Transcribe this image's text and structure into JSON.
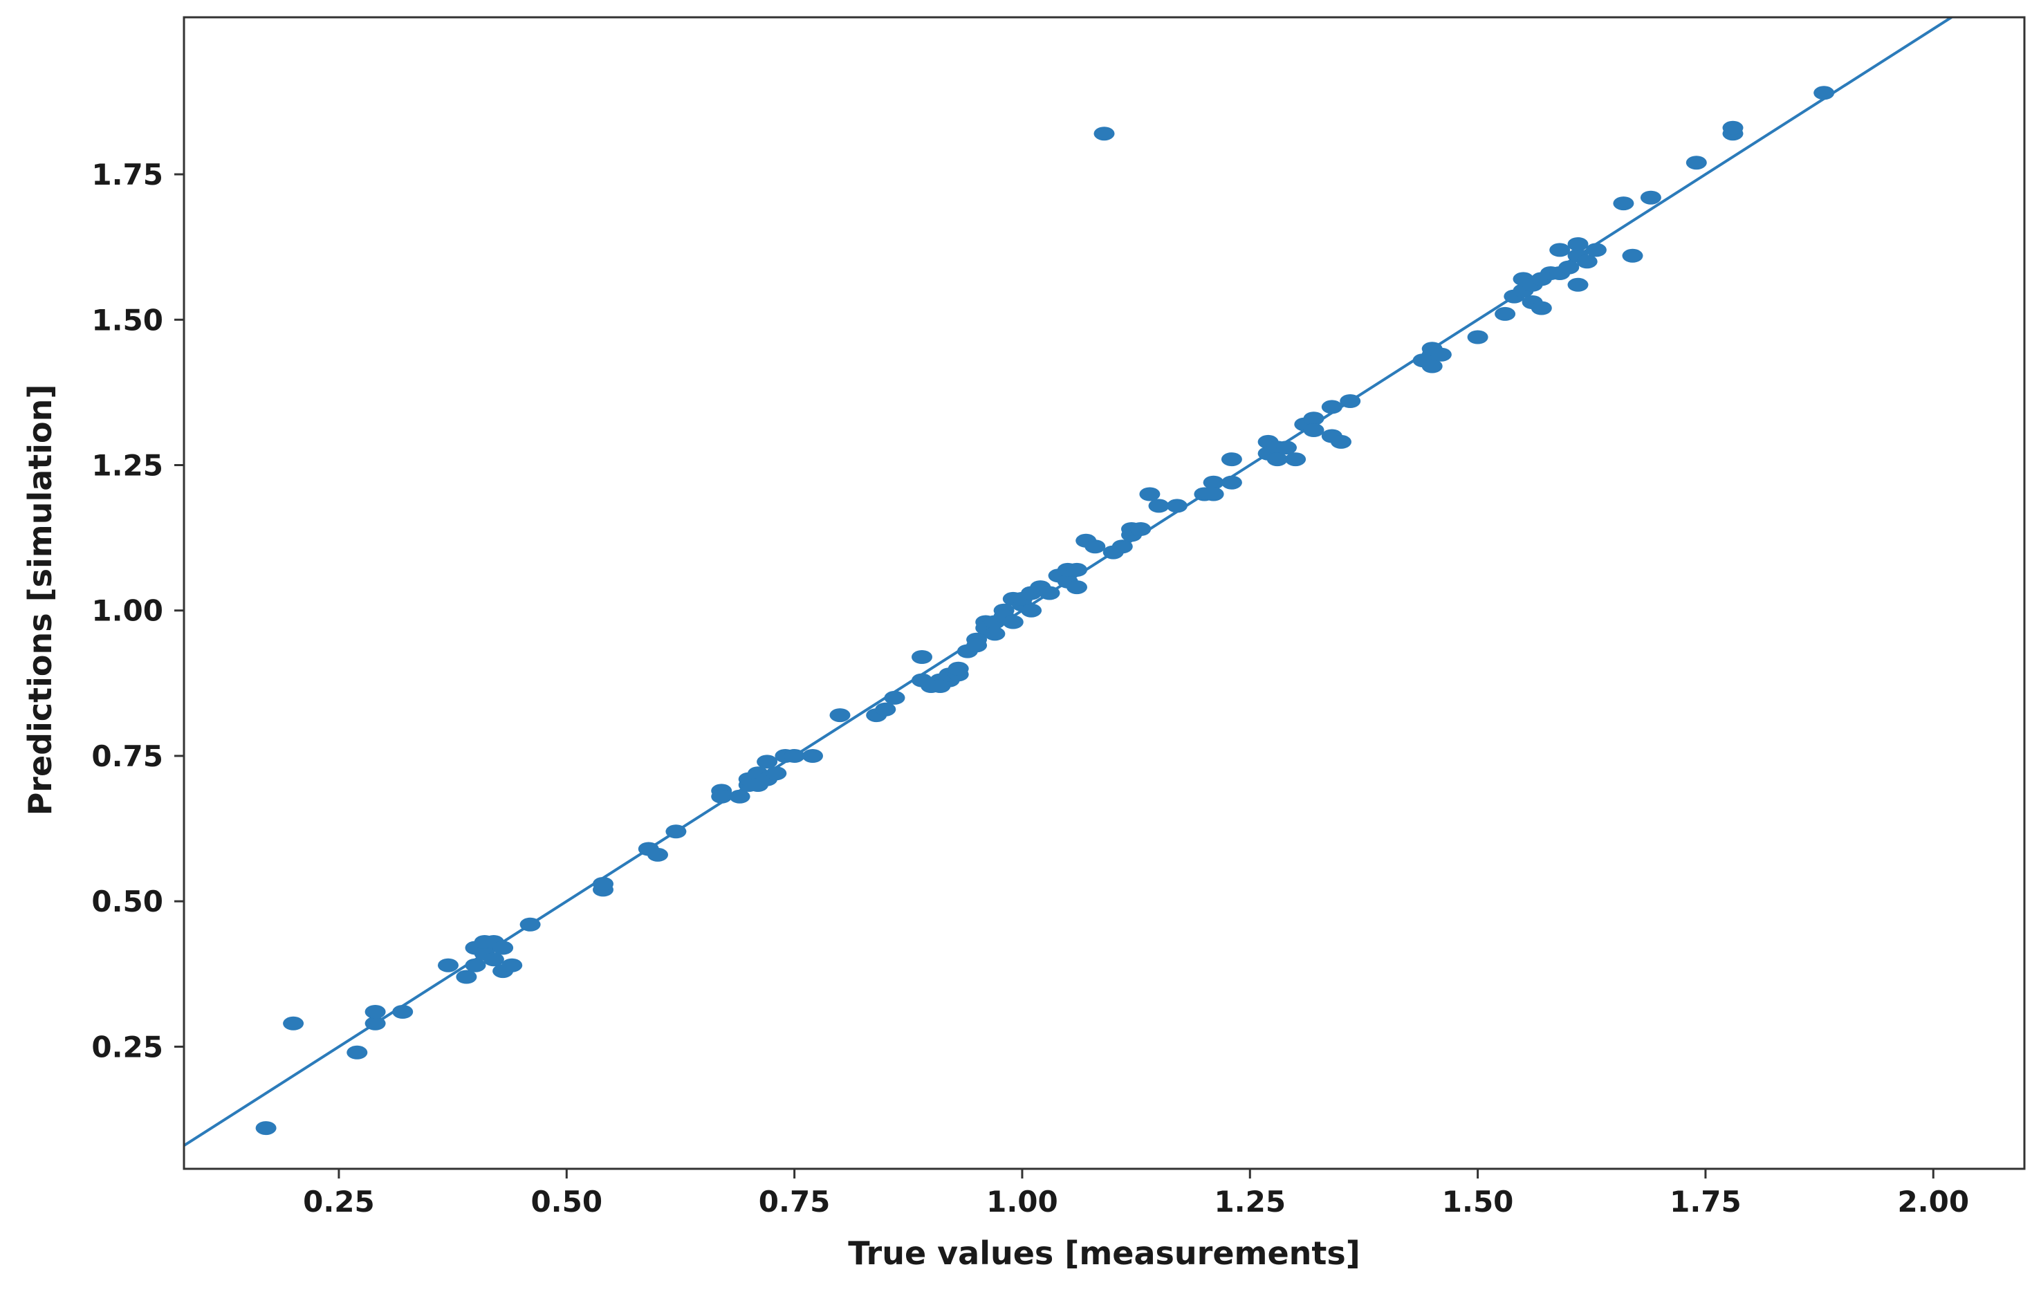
{
  "chart_data": {
    "type": "scatter",
    "title": "",
    "xlabel": "True values [measurements]",
    "ylabel": "Predictions [simulation]",
    "xlim": [
      0.08,
      2.1
    ],
    "ylim": [
      0.04,
      2.02
    ],
    "x_ticks": [
      0.25,
      0.5,
      0.75,
      1.0,
      1.25,
      1.5,
      1.75,
      2.0
    ],
    "x_tick_labels": [
      "0.25",
      "0.50",
      "0.75",
      "1.00",
      "1.25",
      "1.50",
      "1.75",
      "2.00"
    ],
    "y_ticks": [
      0.25,
      0.5,
      0.75,
      1.0,
      1.25,
      1.5,
      1.75
    ],
    "y_tick_labels": [
      "0.25",
      "0.50",
      "0.75",
      "1.00",
      "1.25",
      "1.50",
      "1.75"
    ],
    "grid": false,
    "legend": "none",
    "colors": {
      "points": "#2b7bba",
      "fit_line": "#2b7bba",
      "frame": "#333333"
    },
    "fit_line": {
      "type": "line",
      "slope": 1.0,
      "intercept": 0.0
    },
    "series": [
      {
        "points": [
          [
            0.17,
            0.11
          ],
          [
            0.2,
            0.29
          ],
          [
            0.27,
            0.24
          ],
          [
            0.29,
            0.29
          ],
          [
            0.29,
            0.31
          ],
          [
            0.32,
            0.31
          ],
          [
            0.37,
            0.39
          ],
          [
            0.39,
            0.37
          ],
          [
            0.4,
            0.39
          ],
          [
            0.4,
            0.42
          ],
          [
            0.41,
            0.41
          ],
          [
            0.41,
            0.43
          ],
          [
            0.42,
            0.4
          ],
          [
            0.42,
            0.43
          ],
          [
            0.43,
            0.42
          ],
          [
            0.43,
            0.38
          ],
          [
            0.44,
            0.39
          ],
          [
            0.46,
            0.46
          ],
          [
            0.54,
            0.52
          ],
          [
            0.54,
            0.53
          ],
          [
            0.59,
            0.59
          ],
          [
            0.6,
            0.58
          ],
          [
            0.62,
            0.62
          ],
          [
            0.67,
            0.69
          ],
          [
            0.67,
            0.68
          ],
          [
            0.69,
            0.68
          ],
          [
            0.7,
            0.7
          ],
          [
            0.7,
            0.71
          ],
          [
            0.71,
            0.72
          ],
          [
            0.71,
            0.7
          ],
          [
            0.72,
            0.74
          ],
          [
            0.72,
            0.71
          ],
          [
            0.73,
            0.72
          ],
          [
            0.74,
            0.75
          ],
          [
            0.75,
            0.75
          ],
          [
            0.77,
            0.75
          ],
          [
            0.8,
            0.82
          ],
          [
            0.84,
            0.82
          ],
          [
            0.85,
            0.83
          ],
          [
            0.86,
            0.85
          ],
          [
            0.89,
            0.92
          ],
          [
            0.89,
            0.88
          ],
          [
            0.9,
            0.87
          ],
          [
            0.91,
            0.88
          ],
          [
            0.91,
            0.87
          ],
          [
            0.92,
            0.88
          ],
          [
            0.92,
            0.89
          ],
          [
            0.93,
            0.89
          ],
          [
            0.93,
            0.9
          ],
          [
            0.94,
            0.93
          ],
          [
            0.95,
            0.95
          ],
          [
            0.95,
            0.94
          ],
          [
            0.96,
            0.98
          ],
          [
            0.96,
            0.97
          ],
          [
            0.97,
            0.98
          ],
          [
            0.97,
            0.96
          ],
          [
            0.98,
            1.0
          ],
          [
            0.98,
            0.99
          ],
          [
            0.99,
            1.02
          ],
          [
            0.99,
            0.98
          ],
          [
            1.0,
            1.01
          ],
          [
            1.0,
            1.02
          ],
          [
            1.01,
            1.03
          ],
          [
            1.01,
            1.0
          ],
          [
            1.02,
            1.04
          ],
          [
            1.03,
            1.03
          ],
          [
            1.04,
            1.06
          ],
          [
            1.05,
            1.05
          ],
          [
            1.05,
            1.07
          ],
          [
            1.06,
            1.04
          ],
          [
            1.06,
            1.07
          ],
          [
            1.07,
            1.12
          ],
          [
            1.08,
            1.11
          ],
          [
            1.09,
            1.82
          ],
          [
            1.1,
            1.1
          ],
          [
            1.11,
            1.11
          ],
          [
            1.12,
            1.13
          ],
          [
            1.12,
            1.14
          ],
          [
            1.13,
            1.14
          ],
          [
            1.14,
            1.2
          ],
          [
            1.15,
            1.18
          ],
          [
            1.17,
            1.18
          ],
          [
            1.2,
            1.2
          ],
          [
            1.21,
            1.22
          ],
          [
            1.21,
            1.2
          ],
          [
            1.23,
            1.26
          ],
          [
            1.23,
            1.22
          ],
          [
            1.27,
            1.29
          ],
          [
            1.27,
            1.27
          ],
          [
            1.28,
            1.28
          ],
          [
            1.28,
            1.26
          ],
          [
            1.29,
            1.28
          ],
          [
            1.3,
            1.26
          ],
          [
            1.31,
            1.32
          ],
          [
            1.32,
            1.33
          ],
          [
            1.32,
            1.31
          ],
          [
            1.34,
            1.35
          ],
          [
            1.34,
            1.3
          ],
          [
            1.35,
            1.29
          ],
          [
            1.36,
            1.36
          ],
          [
            1.44,
            1.43
          ],
          [
            1.45,
            1.44
          ],
          [
            1.45,
            1.45
          ],
          [
            1.45,
            1.42
          ],
          [
            1.46,
            1.44
          ],
          [
            1.5,
            1.47
          ],
          [
            1.53,
            1.51
          ],
          [
            1.54,
            1.54
          ],
          [
            1.55,
            1.57
          ],
          [
            1.55,
            1.55
          ],
          [
            1.56,
            1.56
          ],
          [
            1.56,
            1.53
          ],
          [
            1.57,
            1.52
          ],
          [
            1.57,
            1.57
          ],
          [
            1.58,
            1.58
          ],
          [
            1.59,
            1.58
          ],
          [
            1.59,
            1.62
          ],
          [
            1.6,
            1.59
          ],
          [
            1.61,
            1.61
          ],
          [
            1.61,
            1.56
          ],
          [
            1.61,
            1.63
          ],
          [
            1.62,
            1.6
          ],
          [
            1.63,
            1.62
          ],
          [
            1.66,
            1.7
          ],
          [
            1.67,
            1.61
          ],
          [
            1.69,
            1.71
          ],
          [
            1.74,
            1.77
          ],
          [
            1.78,
            1.82
          ],
          [
            1.78,
            1.83
          ],
          [
            1.88,
            1.89
          ]
        ]
      }
    ]
  }
}
